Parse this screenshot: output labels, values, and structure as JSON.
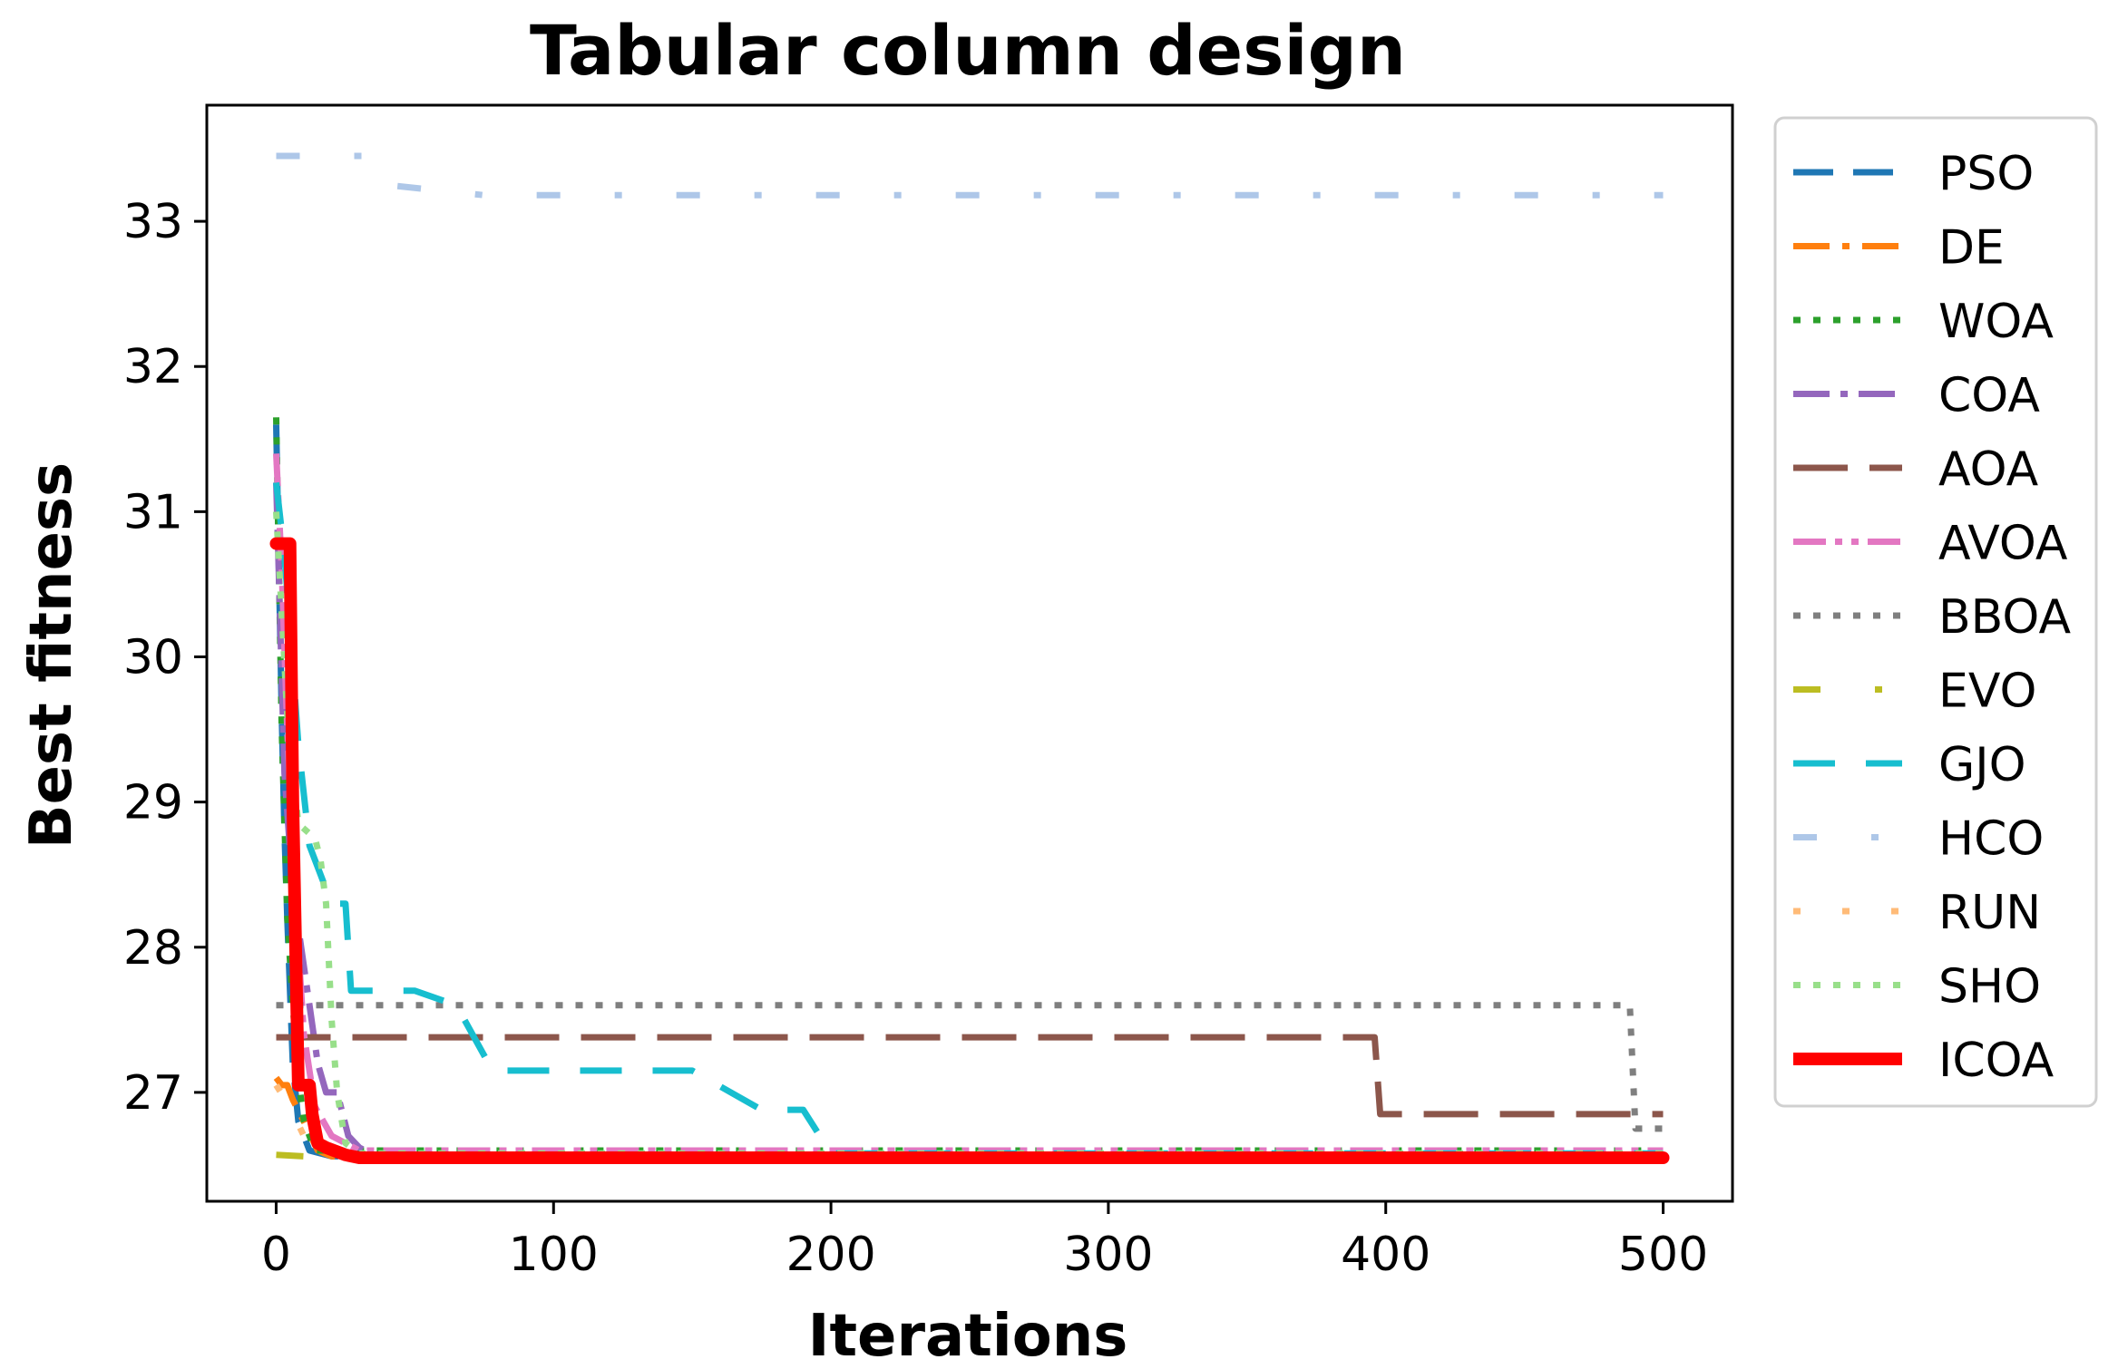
{
  "chart_data": {
    "type": "line",
    "title": "Tabular column design",
    "xlabel": "Iterations",
    "ylabel": "Best fitness",
    "xlim": [
      -25,
      525
    ],
    "ylim": [
      26.25,
      33.8
    ],
    "xticks": [
      0,
      100,
      200,
      300,
      400,
      500
    ],
    "yticks": [
      27,
      28,
      29,
      30,
      31,
      32,
      33
    ],
    "grid": false,
    "legend_position": "outside-right",
    "series": [
      {
        "name": "PSO",
        "color": "#1f77b4",
        "dash": "44 22",
        "width": 7,
        "x": [
          0,
          1,
          2,
          3,
          4,
          5,
          6,
          8,
          12,
          20,
          500
        ],
        "y": [
          31.6,
          30.6,
          29.6,
          28.8,
          28.2,
          27.7,
          27.2,
          26.8,
          26.6,
          26.56,
          26.56
        ]
      },
      {
        "name": "DE",
        "color": "#ff7f0e",
        "dash": "40 14 8 14",
        "width": 7,
        "x": [
          0,
          2,
          4,
          6,
          10,
          15,
          20,
          500
        ],
        "y": [
          27.1,
          27.05,
          27.05,
          26.95,
          26.8,
          26.6,
          26.56,
          26.56
        ]
      },
      {
        "name": "WOA",
        "color": "#2ca02c",
        "dash": "8 14",
        "width": 7,
        "x": [
          0,
          2,
          4,
          6,
          8,
          10,
          14,
          500
        ],
        "y": [
          31.65,
          29.5,
          28.2,
          27.6,
          27.1,
          26.8,
          26.6,
          26.6
        ]
      },
      {
        "name": "COA",
        "color": "#9467bd",
        "dash": "40 12 8 12",
        "width": 7,
        "x": [
          0,
          3,
          6,
          9,
          12,
          15,
          18,
          22,
          26,
          30,
          35,
          500
        ],
        "y": [
          31.2,
          29.2,
          28.4,
          28.0,
          27.6,
          27.2,
          27.0,
          27.0,
          26.7,
          26.62,
          26.57,
          26.57
        ]
      },
      {
        "name": "AOA",
        "color": "#8c564b",
        "dash": "60 24",
        "width": 7,
        "x": [
          0,
          396,
          398,
          500
        ],
        "y": [
          27.38,
          27.38,
          26.85,
          26.85
        ]
      },
      {
        "name": "AVOA",
        "color": "#e377c2",
        "dash": "36 10 8 10 8 10",
        "width": 7,
        "x": [
          0,
          2,
          4,
          6,
          8,
          10,
          14,
          20,
          30,
          40,
          500
        ],
        "y": [
          31.4,
          30.6,
          29.5,
          28.6,
          28.0,
          27.4,
          26.9,
          26.7,
          26.6,
          26.6,
          26.6
        ]
      },
      {
        "name": "BBOA",
        "color": "#7f7f7f",
        "dash": "8 14",
        "width": 7,
        "x": [
          0,
          488,
          490,
          500
        ],
        "y": [
          27.6,
          27.6,
          26.75,
          26.75
        ]
      },
      {
        "name": "EVO",
        "color": "#bcbd22",
        "dash": "30 60 8 60",
        "width": 7,
        "x": [
          0,
          10,
          500
        ],
        "y": [
          26.57,
          26.56,
          26.56
        ]
      },
      {
        "name": "GJO",
        "color": "#17becf",
        "dash": "46 34",
        "width": 7,
        "x": [
          0,
          3,
          5,
          8,
          12,
          20,
          25,
          27,
          50,
          65,
          78,
          150,
          175,
          190,
          200,
          500
        ],
        "y": [
          31.2,
          30.7,
          30.2,
          29.4,
          28.7,
          28.3,
          28.3,
          27.7,
          27.7,
          27.6,
          27.15,
          27.15,
          26.88,
          26.88,
          26.58,
          26.58
        ]
      },
      {
        "name": "HCO",
        "color": "#aec7e8",
        "dash": "26 60 8 60",
        "width": 7,
        "x": [
          0,
          35,
          40,
          75,
          500
        ],
        "y": [
          33.45,
          33.45,
          33.25,
          33.18,
          33.18
        ]
      },
      {
        "name": "RUN",
        "color": "#ffbb78",
        "dash": "8 46",
        "width": 7,
        "x": [
          0,
          5,
          10,
          20,
          500
        ],
        "y": [
          27.05,
          26.9,
          26.7,
          26.57,
          26.57
        ]
      },
      {
        "name": "SHO",
        "color": "#98df8a",
        "dash": "8 14",
        "width": 7,
        "x": [
          0,
          4,
          8,
          14,
          16,
          18,
          20,
          22,
          25,
          30,
          500
        ],
        "y": [
          31.0,
          29.6,
          28.85,
          28.75,
          28.6,
          28.3,
          27.5,
          27.0,
          26.65,
          26.58,
          26.58
        ]
      },
      {
        "name": "ICOA",
        "color": "#ff0000",
        "dash": "",
        "width": 14,
        "x": [
          0,
          5,
          6,
          8,
          12,
          13,
          15,
          18,
          25,
          30,
          500
        ],
        "y": [
          30.78,
          30.78,
          29.0,
          27.05,
          27.05,
          26.85,
          26.65,
          26.62,
          26.57,
          26.55,
          26.55
        ]
      }
    ]
  }
}
